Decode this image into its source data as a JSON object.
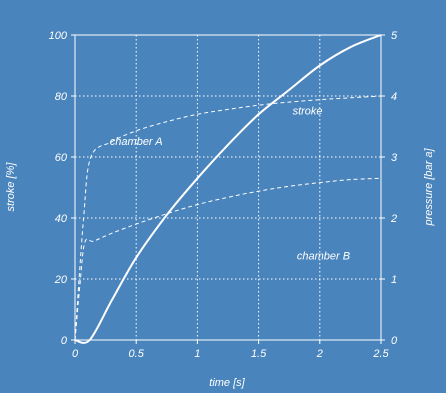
{
  "colors": {
    "background": "#4a84bc",
    "foreground": "#ffffff"
  },
  "chart_data": {
    "type": "line",
    "xlabel": "time [s]",
    "ylabel_left": "stroke [%]",
    "ylabel_right": "pressure [bar a]",
    "xlim": [
      0,
      2.5
    ],
    "ylim_left": [
      0,
      100
    ],
    "ylim_right": [
      0,
      5
    ],
    "grid": true,
    "x_ticks": [
      0,
      0.5,
      1,
      1.5,
      2,
      2.5
    ],
    "x_tick_labels": [
      "0",
      "0.5",
      "1",
      "1.5",
      "2",
      "2.5"
    ],
    "y_left_ticks": [
      0,
      20,
      40,
      60,
      80,
      100
    ],
    "y_left_tick_labels": [
      "0",
      "20",
      "40",
      "60",
      "80",
      "100"
    ],
    "y_right_ticks": [
      0,
      1,
      2,
      3,
      4,
      5
    ],
    "y_right_tick_labels": [
      "0",
      "1",
      "2",
      "3",
      "4",
      "5"
    ],
    "series": [
      {
        "name": "stroke",
        "axis": "left",
        "style": "solid",
        "x": [
          0,
          0.12,
          0.3,
          0.5,
          0.75,
          1.0,
          1.25,
          1.5,
          1.75,
          2.0,
          2.25,
          2.5
        ],
        "y": [
          0,
          0,
          13,
          27,
          41,
          53,
          64,
          74,
          82,
          90,
          96,
          100
        ]
      },
      {
        "name": "chamber A",
        "axis": "right",
        "style": "dashed",
        "x": [
          0,
          0.07,
          0.13,
          0.3,
          0.5,
          0.75,
          1.0,
          1.25,
          1.5,
          1.75,
          2.0,
          2.25,
          2.5
        ],
        "y": [
          0,
          2.0,
          3.0,
          3.25,
          3.43,
          3.58,
          3.7,
          3.78,
          3.85,
          3.9,
          3.94,
          3.97,
          4.0
        ]
      },
      {
        "name": "chamber B",
        "axis": "right",
        "style": "dashed",
        "x": [
          0,
          0.04,
          0.08,
          0.15,
          0.3,
          0.5,
          0.75,
          1.0,
          1.25,
          1.5,
          1.75,
          2.0,
          2.25,
          2.5
        ],
        "y": [
          0,
          0.9,
          1.6,
          1.62,
          1.75,
          1.9,
          2.07,
          2.22,
          2.34,
          2.44,
          2.52,
          2.58,
          2.63,
          2.65
        ]
      }
    ],
    "annotations": [
      {
        "text": "stroke",
        "x": 1.9,
        "y": 3.7,
        "axis": "right"
      },
      {
        "text": "chamber A",
        "x": 0.5,
        "y": 3.2,
        "axis": "right"
      },
      {
        "text": "chamber B",
        "x": 2.03,
        "y": 1.32,
        "axis": "right"
      }
    ]
  }
}
